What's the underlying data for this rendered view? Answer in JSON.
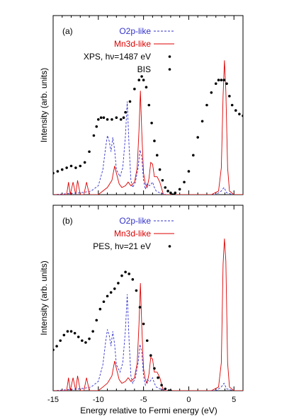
{
  "chart_data": [
    {
      "panel": "(a)",
      "type": "line",
      "xlabel": "",
      "ylabel": "Intensity (arb. units)",
      "xlim": [
        -15,
        6
      ],
      "ylim": [
        0,
        1.0
      ],
      "grid": false,
      "legend_placement": "top-left",
      "series": [
        {
          "name": "O2p-like",
          "style": "dashed",
          "color": "#3333cc",
          "x": [
            -15,
            -12,
            -10.8,
            -10,
            -9.5,
            -9.2,
            -9.0,
            -8.8,
            -8.6,
            -8.4,
            -8.2,
            -8.0,
            -7.6,
            -7.3,
            -7.0,
            -6.8,
            -6.6,
            -6.4,
            -6.2,
            -5.9,
            -5.6,
            -5.4,
            -5.2,
            -5.0,
            -4.8,
            -4.6,
            -4.3,
            -4.0,
            -3.8,
            -3.6,
            -3.2,
            -2.5,
            -1.0,
            1.0,
            3.0,
            3.6,
            3.9,
            4.2,
            5.0,
            6.0
          ],
          "values": [
            0.0,
            0.01,
            0.02,
            0.05,
            0.14,
            0.26,
            0.33,
            0.3,
            0.24,
            0.32,
            0.25,
            0.14,
            0.1,
            0.15,
            0.33,
            0.52,
            0.27,
            0.08,
            0.04,
            0.07,
            0.15,
            0.25,
            0.21,
            0.08,
            0.03,
            0.06,
            0.05,
            0.07,
            0.04,
            0.02,
            0.01,
            0.0,
            0.0,
            0.0,
            0.0,
            0.02,
            0.04,
            0.01,
            0.0,
            0.0
          ]
        },
        {
          "name": "Mn3d-like",
          "style": "solid",
          "color": "#dd0000",
          "x": [
            -15,
            -13.5,
            -13.3,
            -13.1,
            -12.8,
            -12.5,
            -12.3,
            -12.0,
            -11.6,
            -11.3,
            -11.0,
            -10.0,
            -9.5,
            -9.0,
            -8.5,
            -8.2,
            -8.0,
            -7.7,
            -7.4,
            -7.0,
            -6.7,
            -6.4,
            -6.0,
            -5.7,
            -5.5,
            -5.35,
            -5.2,
            -5.0,
            -4.8,
            -4.6,
            -4.4,
            -4.2,
            -4.0,
            -3.8,
            -3.5,
            -3.2,
            -2.8,
            -2.0,
            0.0,
            2.5,
            3.3,
            3.6,
            3.8,
            3.95,
            4.1,
            4.3,
            4.5,
            5.0,
            6.0
          ],
          "values": [
            0.0,
            0.0,
            0.07,
            0.0,
            0.07,
            0.0,
            0.08,
            0.0,
            0.0,
            0.07,
            0.0,
            0.0,
            0.02,
            0.04,
            0.08,
            0.16,
            0.12,
            0.06,
            0.04,
            0.05,
            0.07,
            0.05,
            0.07,
            0.15,
            0.36,
            0.58,
            0.35,
            0.12,
            0.06,
            0.04,
            0.09,
            0.18,
            0.17,
            0.1,
            0.1,
            0.07,
            0.0,
            0.0,
            0.0,
            0.0,
            0.02,
            0.15,
            0.55,
            0.75,
            0.58,
            0.15,
            0.02,
            0.0,
            0.0
          ]
        },
        {
          "name": "XPS, hν=1487 eV",
          "style": "dots",
          "color": "#000000",
          "x": [
            -15.0,
            -14.5,
            -14.0,
            -13.5,
            -13.0,
            -12.5,
            -12.0,
            -11.5,
            -11.0,
            -10.5,
            -10.2,
            -10.0,
            -9.7,
            -9.4,
            -9.0,
            -8.5,
            -8.0,
            -7.5,
            -7.2,
            -7.0,
            -6.5,
            -6.0,
            -5.5,
            -5.2,
            -5.0,
            -4.7,
            -4.4,
            -4.1,
            -3.8,
            -3.5,
            -3.2,
            -2.9,
            -2.6,
            -2.3,
            -2.0,
            -1.8,
            -1.6
          ],
          "values": [
            0.12,
            0.13,
            0.14,
            0.15,
            0.16,
            0.15,
            0.16,
            0.18,
            0.24,
            0.33,
            0.38,
            0.42,
            0.43,
            0.43,
            0.42,
            0.42,
            0.43,
            0.42,
            0.43,
            0.46,
            0.52,
            0.59,
            0.64,
            0.66,
            0.64,
            0.6,
            0.5,
            0.4,
            0.3,
            0.22,
            0.14,
            0.08,
            0.04,
            0.02,
            0.01,
            0.0,
            0.0
          ]
        },
        {
          "name": "BIS",
          "style": "dots",
          "color": "#000000",
          "x": [
            -1.5,
            -1.0,
            -0.5,
            0.0,
            0.5,
            1.0,
            1.5,
            2.0,
            2.5,
            3.0,
            3.3,
            3.6,
            3.9,
            4.2,
            4.5,
            4.8,
            5.2,
            5.6,
            6.0
          ],
          "values": [
            0.01,
            0.03,
            0.07,
            0.13,
            0.22,
            0.32,
            0.41,
            0.5,
            0.57,
            0.62,
            0.64,
            0.64,
            0.64,
            0.62,
            0.55,
            0.5,
            0.47,
            0.45,
            0.44
          ]
        }
      ]
    },
    {
      "panel": "(b)",
      "type": "line",
      "xlabel": "Energy relative to Fermi energy (eV)",
      "ylabel": "Intensity (arb. units)",
      "xlim": [
        -15,
        6
      ],
      "ylim": [
        0,
        1.0
      ],
      "xticks": [
        -15,
        -10,
        -5,
        0,
        5
      ],
      "grid": false,
      "legend_placement": "top-left",
      "series": [
        {
          "name": "O2p-like",
          "style": "dashed",
          "color": "#3333cc",
          "x": [
            -15,
            -12,
            -10.8,
            -10,
            -9.5,
            -9.2,
            -9.0,
            -8.8,
            -8.6,
            -8.4,
            -8.2,
            -8.0,
            -7.6,
            -7.3,
            -7.0,
            -6.8,
            -6.6,
            -6.4,
            -6.2,
            -5.9,
            -5.6,
            -5.4,
            -5.2,
            -5.0,
            -4.8,
            -4.6,
            -4.3,
            -4.0,
            -3.8,
            -3.6,
            -3.2,
            -2.5,
            -1.0,
            1.0,
            3.0,
            3.6,
            3.9,
            4.2,
            5.0,
            6.0
          ],
          "values": [
            0.0,
            0.01,
            0.02,
            0.05,
            0.14,
            0.26,
            0.33,
            0.3,
            0.24,
            0.32,
            0.25,
            0.14,
            0.1,
            0.15,
            0.33,
            0.52,
            0.27,
            0.08,
            0.04,
            0.07,
            0.15,
            0.25,
            0.21,
            0.08,
            0.03,
            0.06,
            0.05,
            0.07,
            0.04,
            0.02,
            0.01,
            0.0,
            0.0,
            0.0,
            0.0,
            0.02,
            0.04,
            0.01,
            0.0,
            0.0
          ]
        },
        {
          "name": "Mn3d-like",
          "style": "solid",
          "color": "#dd0000",
          "x": [
            -15,
            -13.5,
            -13.3,
            -13.1,
            -12.8,
            -12.5,
            -12.3,
            -12.0,
            -11.6,
            -11.3,
            -11.0,
            -10.0,
            -9.5,
            -9.0,
            -8.5,
            -8.2,
            -8.0,
            -7.7,
            -7.4,
            -7.0,
            -6.7,
            -6.4,
            -6.0,
            -5.7,
            -5.5,
            -5.35,
            -5.2,
            -5.0,
            -4.8,
            -4.6,
            -4.4,
            -4.2,
            -4.0,
            -3.8,
            -3.5,
            -3.2,
            -2.8,
            -2.0,
            0.0,
            2.5,
            3.3,
            3.6,
            3.8,
            3.95,
            4.1,
            4.3,
            4.5,
            5.0,
            6.0
          ],
          "values": [
            0.0,
            0.0,
            0.07,
            0.0,
            0.07,
            0.0,
            0.08,
            0.0,
            0.0,
            0.07,
            0.0,
            0.0,
            0.02,
            0.04,
            0.08,
            0.16,
            0.12,
            0.06,
            0.04,
            0.05,
            0.07,
            0.05,
            0.07,
            0.15,
            0.36,
            0.58,
            0.35,
            0.12,
            0.06,
            0.04,
            0.09,
            0.18,
            0.17,
            0.1,
            0.1,
            0.07,
            0.0,
            0.0,
            0.0,
            0.0,
            0.02,
            0.15,
            0.68,
            0.82,
            0.7,
            0.15,
            0.02,
            0.0,
            0.0
          ]
        },
        {
          "name": "PES, hν=21 eV",
          "style": "dots",
          "color": "#000000",
          "x": [
            -15.0,
            -14.6,
            -14.2,
            -13.8,
            -13.4,
            -13.0,
            -12.6,
            -12.2,
            -11.8,
            -11.4,
            -11.0,
            -10.6,
            -10.2,
            -9.8,
            -9.4,
            -9.0,
            -8.6,
            -8.2,
            -7.8,
            -7.4,
            -7.0,
            -6.6,
            -6.2,
            -5.8,
            -5.4,
            -5.0,
            -4.6,
            -4.2,
            -3.8,
            -3.4,
            -3.0,
            -2.6,
            -2.2,
            -2.0
          ],
          "values": [
            0.22,
            0.24,
            0.27,
            0.3,
            0.32,
            0.32,
            0.31,
            0.29,
            0.27,
            0.26,
            0.28,
            0.32,
            0.38,
            0.44,
            0.48,
            0.51,
            0.53,
            0.55,
            0.58,
            0.62,
            0.64,
            0.63,
            0.6,
            0.54,
            0.45,
            0.36,
            0.27,
            0.19,
            0.12,
            0.07,
            0.03,
            0.01,
            0.0,
            0.0
          ]
        }
      ]
    }
  ]
}
